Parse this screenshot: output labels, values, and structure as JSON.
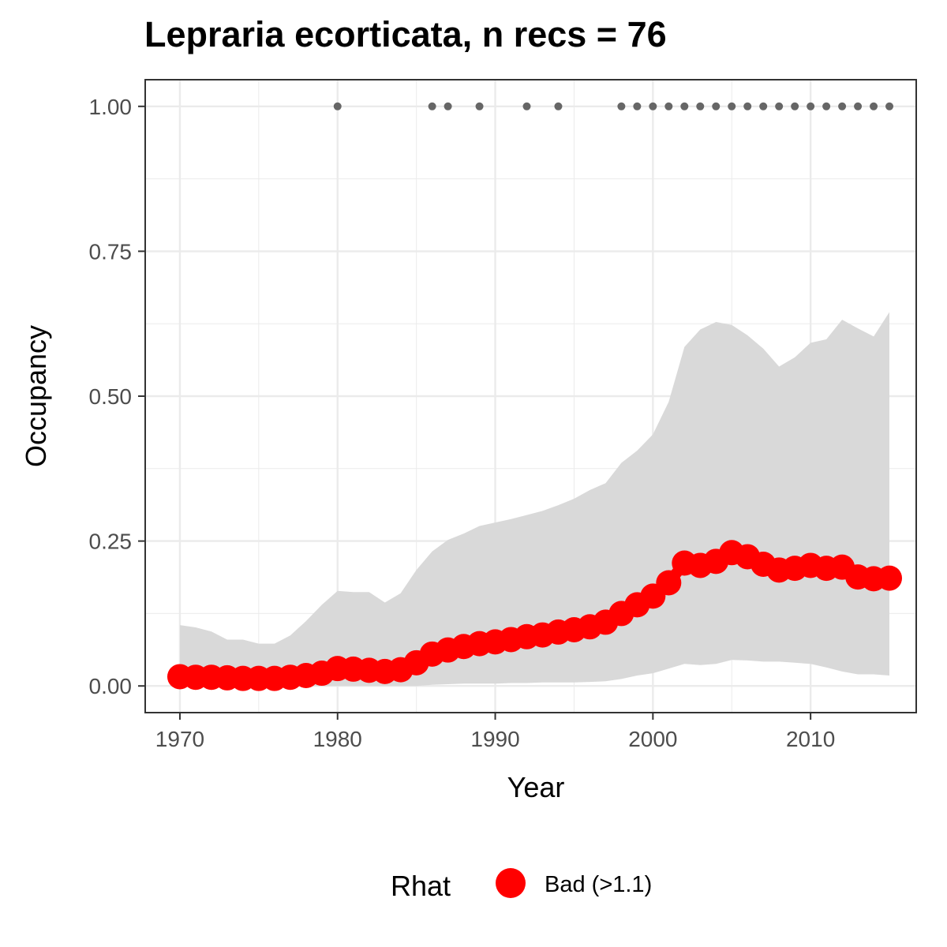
{
  "chart_data": {
    "type": "line",
    "title": "Lepraria ecorticata, n recs = 76",
    "xlabel": "Year",
    "ylabel": "Occupancy",
    "xlim": [
      1967.8,
      2016.7
    ],
    "ylim": [
      -0.046,
      1.046
    ],
    "grid": true,
    "x_ticks": [
      1970,
      1980,
      1990,
      2000,
      2010
    ],
    "x_tick_labels": [
      "1970",
      "1980",
      "1990",
      "2000",
      "2010"
    ],
    "y_ticks": [
      0,
      0.25,
      0.5,
      0.75,
      1.0
    ],
    "y_tick_labels": [
      "0.00",
      "0.25",
      "0.50",
      "0.75",
      "1.00"
    ],
    "colors": {
      "series": "#ff0000",
      "ribbon": "#d9d9d9",
      "records": "#666666",
      "grid": "#ebebeb",
      "panel_border": "#333333"
    },
    "years": [
      1970,
      1971,
      1972,
      1973,
      1974,
      1975,
      1976,
      1977,
      1978,
      1979,
      1980,
      1981,
      1982,
      1983,
      1984,
      1985,
      1986,
      1987,
      1988,
      1989,
      1990,
      1991,
      1992,
      1993,
      1994,
      1995,
      1996,
      1997,
      1998,
      1999,
      2000,
      2001,
      2002,
      2003,
      2004,
      2005,
      2006,
      2007,
      2008,
      2009,
      2010,
      2011,
      2012,
      2013,
      2014,
      2015
    ],
    "series": [
      {
        "name": "Occupancy",
        "values": [
          0.016,
          0.015,
          0.015,
          0.014,
          0.013,
          0.013,
          0.013,
          0.015,
          0.018,
          0.022,
          0.03,
          0.029,
          0.027,
          0.025,
          0.028,
          0.04,
          0.055,
          0.062,
          0.068,
          0.073,
          0.076,
          0.08,
          0.085,
          0.088,
          0.093,
          0.097,
          0.102,
          0.11,
          0.125,
          0.14,
          0.155,
          0.178,
          0.212,
          0.208,
          0.215,
          0.23,
          0.223,
          0.21,
          0.2,
          0.203,
          0.208,
          0.203,
          0.205,
          0.188,
          0.185,
          0.186
        ],
        "lower": [
          0,
          0,
          0,
          0,
          0,
          0,
          0,
          0,
          0,
          0,
          0,
          0,
          0,
          0,
          0,
          0,
          0.002,
          0.003,
          0.004,
          0.004,
          0.004,
          0.005,
          0.005,
          0.006,
          0.006,
          0.006,
          0.007,
          0.008,
          0.012,
          0.018,
          0.022,
          0.03,
          0.038,
          0.036,
          0.038,
          0.045,
          0.044,
          0.042,
          0.042,
          0.04,
          0.038,
          0.032,
          0.025,
          0.02,
          0.02,
          0.018
        ],
        "upper": [
          0.105,
          0.101,
          0.094,
          0.08,
          0.08,
          0.073,
          0.073,
          0.087,
          0.112,
          0.14,
          0.164,
          0.162,
          0.162,
          0.144,
          0.16,
          0.2,
          0.232,
          0.252,
          0.263,
          0.276,
          0.282,
          0.288,
          0.295,
          0.302,
          0.312,
          0.323,
          0.338,
          0.35,
          0.385,
          0.406,
          0.434,
          0.49,
          0.585,
          0.615,
          0.628,
          0.623,
          0.605,
          0.582,
          0.551,
          0.567,
          0.592,
          0.598,
          0.632,
          0.617,
          0.603,
          0.645
        ]
      }
    ],
    "record_years": [
      1980,
      1986,
      1987,
      1989,
      1992,
      1994,
      1998,
      1999,
      2000,
      2001,
      2002,
      2003,
      2004,
      2005,
      2006,
      2007,
      2008,
      2009,
      2010,
      2011,
      2012,
      2013,
      2014,
      2015
    ],
    "record_value": 1.0,
    "legend": {
      "title": "Rhat",
      "entries": [
        {
          "label": "Bad (>1.1)",
          "color": "#ff0000"
        }
      ],
      "placement": "bottom"
    }
  }
}
